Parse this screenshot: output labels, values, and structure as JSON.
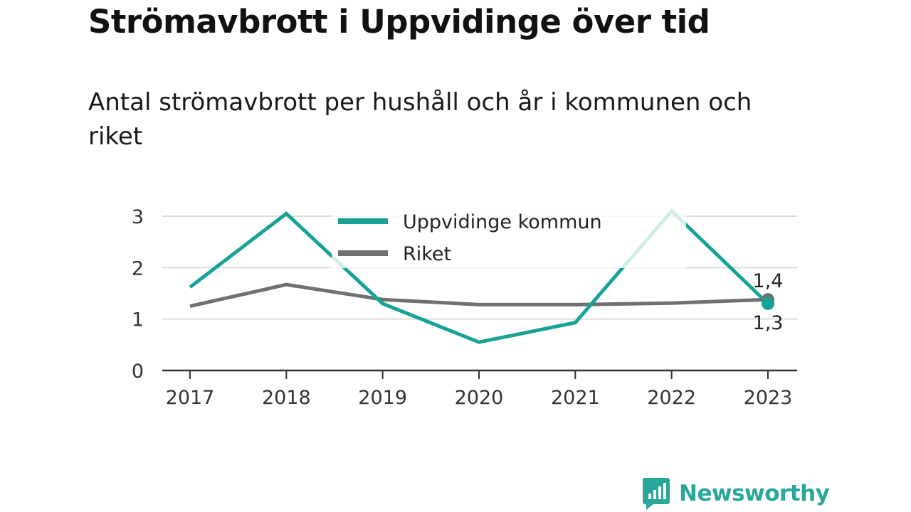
{
  "chart_data": {
    "type": "line",
    "title": "Strömavbrott i Uppvidinge över tid",
    "subtitle": "Antal strömavbrott per hushåll och år i kommunen och riket",
    "categories": [
      "2017",
      "2018",
      "2019",
      "2020",
      "2021",
      "2022",
      "2023"
    ],
    "series": [
      {
        "name": "Uppvidinge kommun",
        "color": "#16a396",
        "values": [
          1.62,
          3.05,
          1.3,
          0.55,
          0.93,
          3.1,
          1.3
        ],
        "last_label": "1,3"
      },
      {
        "name": "Riket",
        "color": "#707073",
        "values": [
          1.25,
          1.67,
          1.38,
          1.28,
          1.28,
          1.31,
          1.38
        ],
        "last_label": "1,4"
      }
    ],
    "y_ticks": [
      "0",
      "1",
      "2",
      "3"
    ],
    "ylim": [
      0,
      3
    ],
    "xlabel": "",
    "ylabel": "",
    "grid": true,
    "legend_position": "top-center"
  },
  "brand": {
    "name": "Newsworthy",
    "color": "#2aa79b",
    "icon": "chat-bar-chart-icon"
  }
}
